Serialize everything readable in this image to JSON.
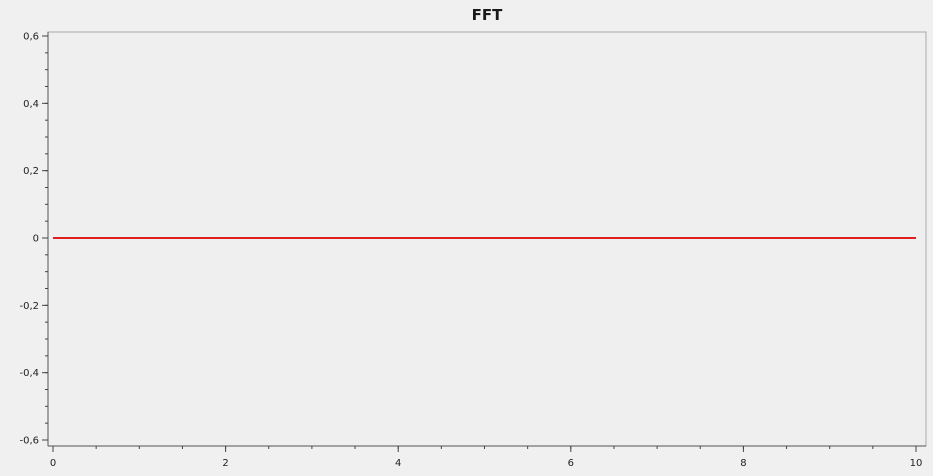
{
  "chart_data": {
    "type": "line",
    "title": "FFT",
    "xlabel": "",
    "ylabel": "",
    "xlim": [
      0,
      10
    ],
    "ylim": [
      -0.6,
      0.6
    ],
    "x_ticks": [
      0,
      2,
      4,
      6,
      8,
      10
    ],
    "x_tick_labels": [
      "0",
      "2",
      "4",
      "6",
      "8",
      "10"
    ],
    "y_ticks": [
      0.6,
      0.4,
      0.2,
      0,
      -0.2,
      -0.4,
      -0.6
    ],
    "y_tick_labels": [
      "0,6",
      "0,4",
      "0,2",
      "0",
      "-0,2",
      "-0,4",
      "-0,6"
    ],
    "grid": false,
    "series": [
      {
        "color": "#e02020",
        "x": [
          0,
          10
        ],
        "y": [
          0,
          0
        ]
      }
    ]
  }
}
